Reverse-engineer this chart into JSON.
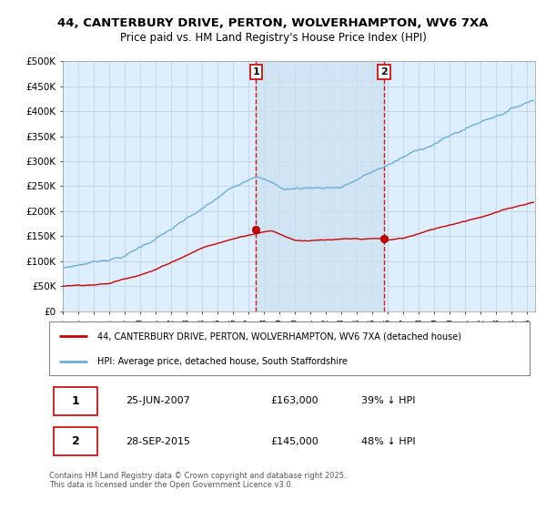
{
  "title1": "44, CANTERBURY DRIVE, PERTON, WOLVERHAMPTON, WV6 7XA",
  "title2": "Price paid vs. HM Land Registry's House Price Index (HPI)",
  "ylabel_ticks": [
    "£0",
    "£50K",
    "£100K",
    "£150K",
    "£200K",
    "£250K",
    "£300K",
    "£350K",
    "£400K",
    "£450K",
    "£500K"
  ],
  "ytick_vals": [
    0,
    50000,
    100000,
    150000,
    200000,
    250000,
    300000,
    350000,
    400000,
    450000,
    500000
  ],
  "ylim": [
    0,
    500000
  ],
  "xlim_start": 1995.0,
  "xlim_end": 2025.5,
  "hpi_color": "#6baed6",
  "price_color": "#cc0000",
  "vline1_x": 2007.48,
  "vline2_x": 2015.74,
  "marker1_y": 163000,
  "marker2_y": 145000,
  "shade_color": "#cce0f0",
  "legend_label1": "44, CANTERBURY DRIVE, PERTON, WOLVERHAMPTON, WV6 7XA (detached house)",
  "legend_label2": "HPI: Average price, detached house, South Staffordshire",
  "annotation1_num": "1",
  "annotation1_date": "25-JUN-2007",
  "annotation1_price": "£163,000",
  "annotation1_hpi": "39% ↓ HPI",
  "annotation2_num": "2",
  "annotation2_date": "28-SEP-2015",
  "annotation2_price": "£145,000",
  "annotation2_hpi": "48% ↓ HPI",
  "footnote": "Contains HM Land Registry data © Crown copyright and database right 2025.\nThis data is licensed under the Open Government Licence v3.0.",
  "bg_color": "#ddeeff",
  "grid_color": "#bbccdd"
}
